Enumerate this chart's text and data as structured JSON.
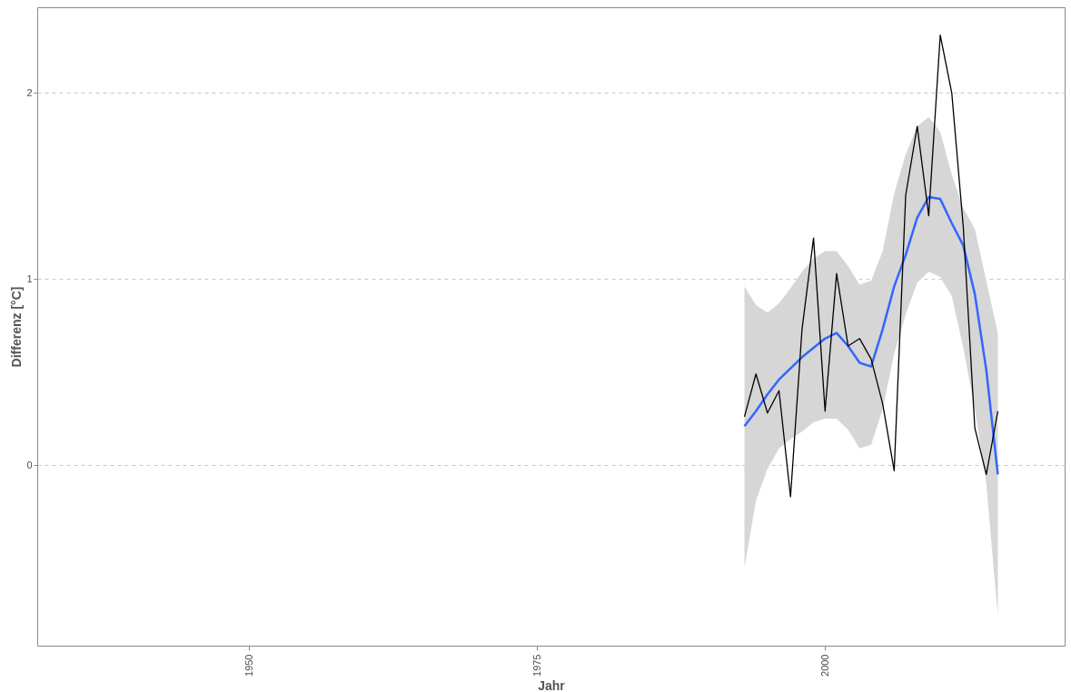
{
  "chart_data": {
    "type": "line",
    "xlabel": "Jahr",
    "ylabel": "Differenz [°C]",
    "xlim": [
      1931.6,
      2020.8
    ],
    "xticks": [
      1950,
      1975,
      2000
    ],
    "ylim": [
      -0.97,
      2.46
    ],
    "yticks": [
      0,
      1,
      2
    ],
    "grid": "y",
    "series": [
      {
        "color": "#000000",
        "x": [
          1993,
          1994,
          1995,
          1996,
          1997,
          1998,
          1999,
          2000,
          2001,
          2002,
          2003,
          2004,
          2005,
          2006,
          2007,
          2008,
          2009,
          2010,
          2011,
          2012,
          2013,
          2014,
          2015
        ],
        "values": [
          0.26,
          0.49,
          0.28,
          0.4,
          -0.17,
          0.73,
          1.22,
          0.29,
          1.03,
          0.64,
          0.68,
          0.57,
          0.33,
          -0.03,
          1.45,
          1.82,
          1.34,
          2.31,
          2.0,
          1.28,
          0.2,
          -0.05,
          0.29
        ]
      },
      {
        "color": "#3366ff",
        "x": [
          1993,
          1994,
          1995,
          1996,
          1997,
          1998,
          1999,
          2000,
          2001,
          2002,
          2003,
          2004,
          2005,
          2006,
          2007,
          2008,
          2009,
          2010,
          2011,
          2012,
          2013,
          2014,
          2015
        ],
        "values": [
          0.21,
          0.29,
          0.38,
          0.46,
          0.52,
          0.58,
          0.63,
          0.68,
          0.71,
          0.64,
          0.55,
          0.53,
          0.73,
          0.96,
          1.13,
          1.33,
          1.44,
          1.43,
          1.3,
          1.18,
          0.92,
          0.51,
          -0.05
        ],
        "lower": [
          -0.55,
          -0.19,
          -0.02,
          0.09,
          0.14,
          0.18,
          0.23,
          0.25,
          0.25,
          0.19,
          0.09,
          0.11,
          0.3,
          0.6,
          0.81,
          0.98,
          1.04,
          1.01,
          0.91,
          0.63,
          0.3,
          -0.1,
          -0.81
        ],
        "upper": [
          0.96,
          0.86,
          0.82,
          0.87,
          0.95,
          1.04,
          1.11,
          1.15,
          1.15,
          1.07,
          0.97,
          0.99,
          1.15,
          1.46,
          1.67,
          1.82,
          1.87,
          1.79,
          1.56,
          1.38,
          1.27,
          0.99,
          0.71
        ]
      }
    ]
  }
}
